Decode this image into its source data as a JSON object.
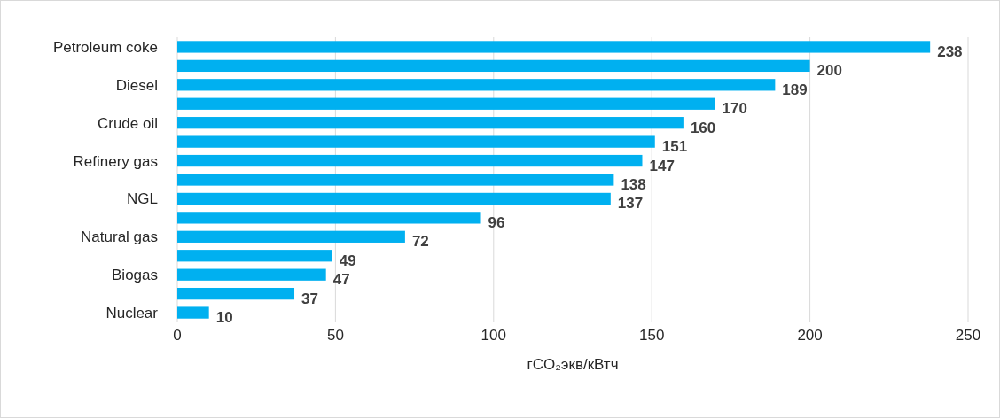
{
  "chart_data": {
    "type": "bar",
    "orientation": "horizontal",
    "categories": [
      "Petroleum coke",
      null,
      "Diesel",
      null,
      "Crude oil",
      null,
      "Refinery gas",
      null,
      "NGL",
      null,
      "Natural gas",
      null,
      "Biogas",
      null,
      "Nuclear"
    ],
    "values": [
      238,
      200,
      189,
      170,
      160,
      151,
      147,
      138,
      137,
      96,
      72,
      49,
      47,
      37,
      10
    ],
    "color": "#00b0f0",
    "data_labels": true,
    "xlim": [
      0,
      250
    ],
    "xticks": [
      0,
      50,
      100,
      150,
      200,
      250
    ],
    "grid": "x",
    "xlabel": "гCO₂экв/кВтч"
  }
}
